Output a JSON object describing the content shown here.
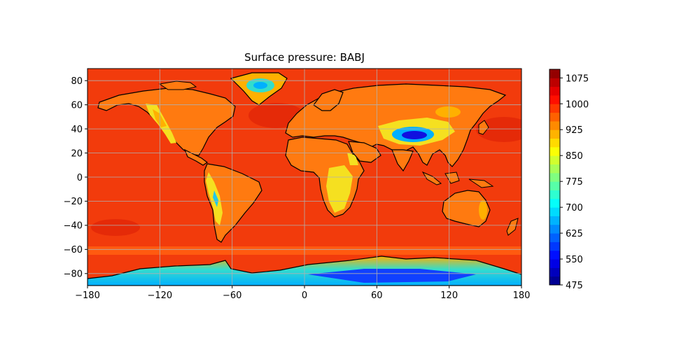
{
  "title": "Surface pressure: BABJ",
  "map": {
    "projection": "PlateCarree",
    "lon_range": [
      -180,
      180
    ],
    "lat_range": [
      -90,
      90
    ],
    "grid": true,
    "coastlines": true,
    "ocean_color": "#f23b0c",
    "deep_ocean_color": "#e31b05",
    "x_ticks": [
      "−180",
      "−120",
      "−60",
      "0",
      "60",
      "120",
      "180"
    ],
    "y_ticks": [
      "80",
      "60",
      "40",
      "20",
      "0",
      "−20",
      "−40",
      "−60",
      "−80"
    ]
  },
  "colorbar": {
    "colormap": "jet",
    "range": [
      475,
      1100
    ],
    "levels": [
      475,
      500,
      525,
      550,
      575,
      600,
      625,
      650,
      675,
      700,
      725,
      750,
      775,
      800,
      825,
      850,
      875,
      900,
      925,
      950,
      975,
      1000,
      1025,
      1050,
      1075,
      1100
    ],
    "tick_labels": [
      "1075",
      "1000",
      "925",
      "850",
      "775",
      "700",
      "625",
      "550",
      "475"
    ]
  }
}
